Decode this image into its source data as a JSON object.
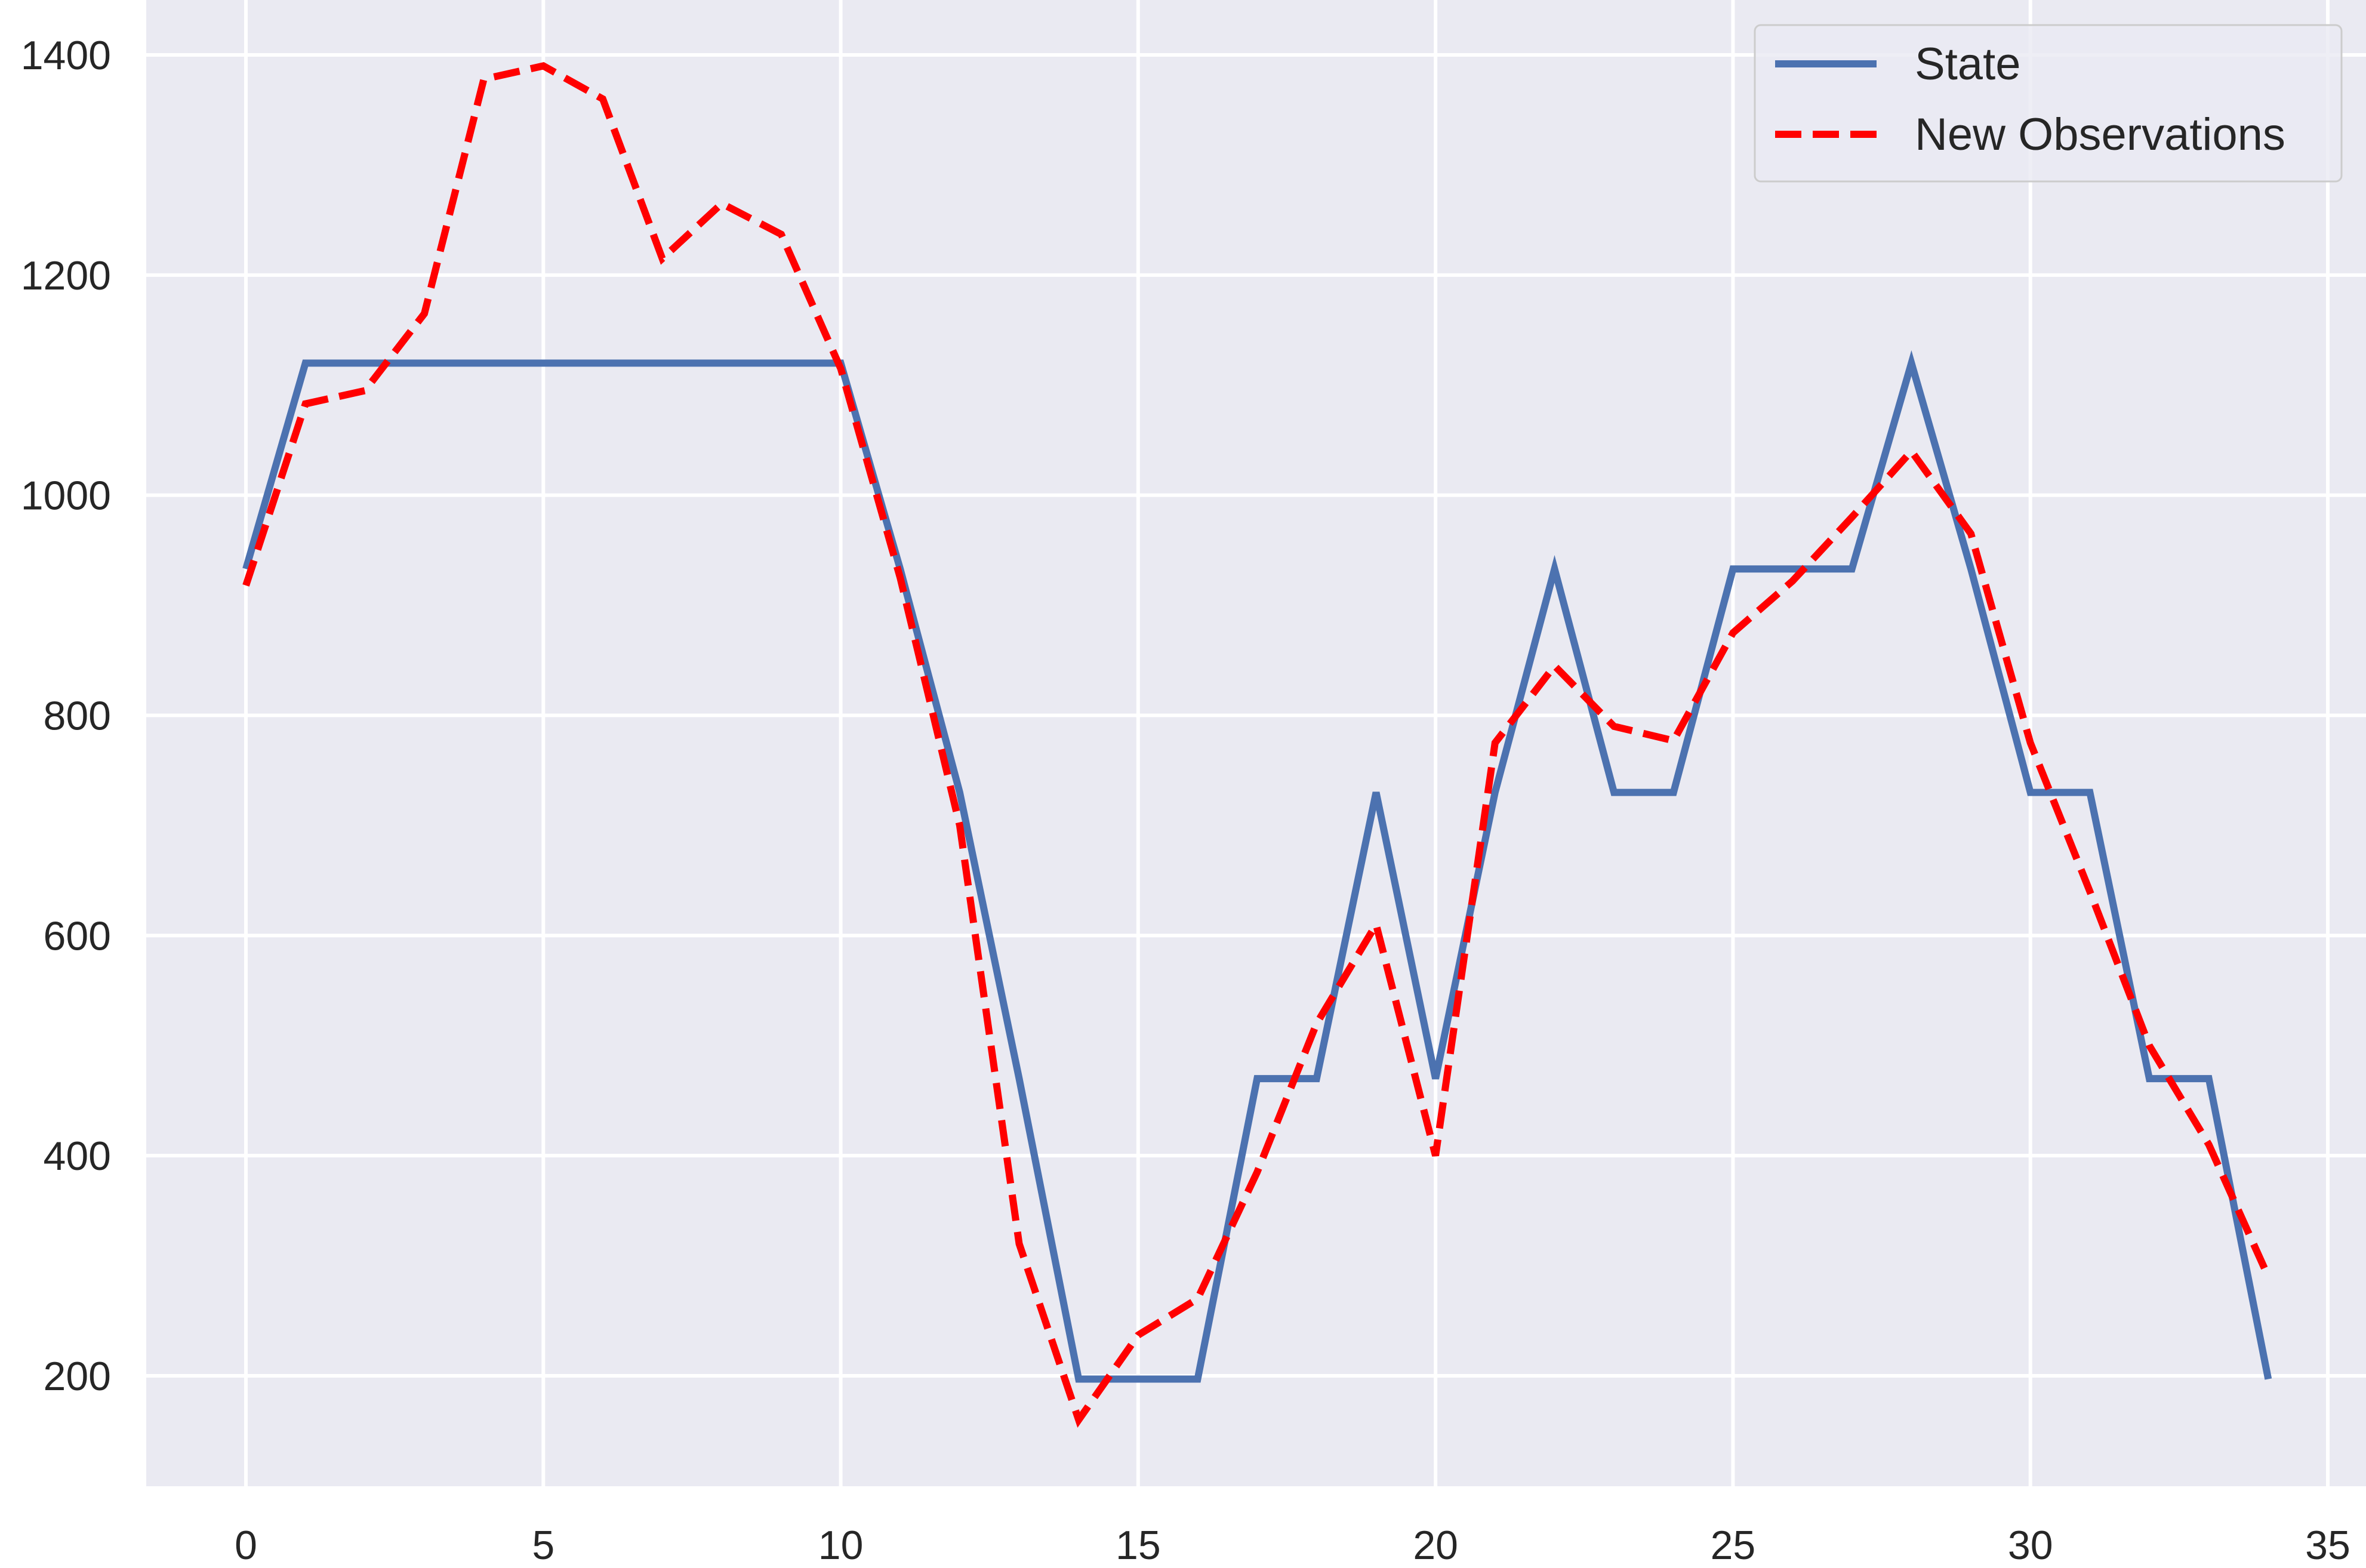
{
  "chart_data": {
    "type": "line",
    "title": "",
    "xlabel": "",
    "ylabel": "",
    "xlim": [
      -1.7,
      35.4
    ],
    "ylim": [
      100,
      1450
    ],
    "xticks": [
      0,
      5,
      10,
      15,
      20,
      25,
      30,
      35
    ],
    "yticks": [
      200,
      400,
      600,
      800,
      1000,
      1200,
      1400
    ],
    "grid": true,
    "legend_position": "top-right",
    "background_color": "#EAEAF2",
    "grid_color": "#FFFFFF",
    "x": [
      0,
      1,
      2,
      3,
      4,
      5,
      6,
      7,
      8,
      9,
      10,
      11,
      12,
      13,
      14,
      15,
      16,
      17,
      18,
      19,
      20,
      21,
      22,
      23,
      24,
      25,
      26,
      27,
      28,
      29,
      30,
      31,
      32,
      33,
      34
    ],
    "series": [
      {
        "name": "State",
        "color": "#4C72B0",
        "style": "solid",
        "values": [
          933,
          1120,
          1120,
          1120,
          1120,
          1120,
          1120,
          1120,
          1120,
          1120,
          1120,
          933,
          730,
          470,
          197,
          197,
          197,
          470,
          470,
          730,
          470,
          730,
          933,
          730,
          730,
          933,
          933,
          933,
          1120,
          933,
          730,
          730,
          470,
          470,
          197
        ]
      },
      {
        "name": "New Observations",
        "color": "#FF0000",
        "style": "dashed",
        "values": [
          918,
          1083,
          1095,
          1165,
          1378,
          1390,
          1360,
          1215,
          1265,
          1237,
          1115,
          925,
          700,
          320,
          160,
          237,
          270,
          385,
          520,
          610,
          400,
          775,
          845,
          790,
          777,
          875,
          922,
          980,
          1040,
          965,
          775,
          640,
          500,
          410,
          290
        ]
      }
    ]
  }
}
